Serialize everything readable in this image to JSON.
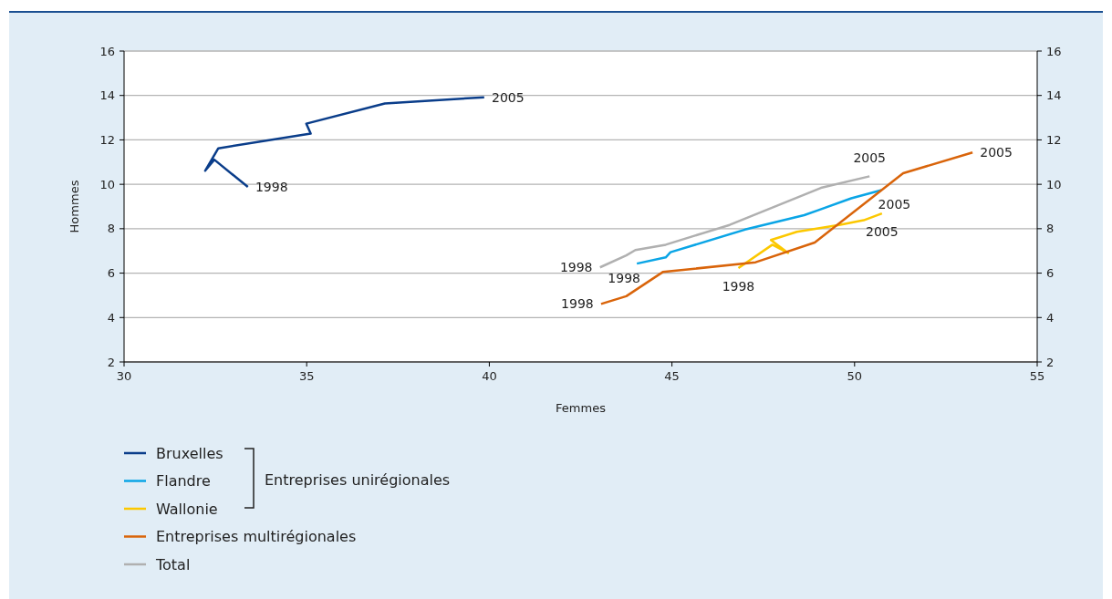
{
  "chart_data": {
    "type": "line",
    "xlabel": "Femmes",
    "ylabel": "Hommes",
    "xlim": [
      30,
      55
    ],
    "xticks": [
      30,
      35,
      40,
      45,
      50,
      55
    ],
    "ylim": [
      2,
      16
    ],
    "yticks": [
      2,
      4,
      6,
      8,
      10,
      12,
      14,
      16
    ],
    "y2lim": [
      2,
      16
    ],
    "y2ticks": [
      2,
      4,
      6,
      8,
      10,
      12,
      14,
      16
    ],
    "grid": "y",
    "legend": "bottom",
    "marker": "none",
    "line_style": "solid",
    "series": [
      {
        "name": "Bruxelles",
        "color": "#0a3d8a",
        "x": [
          33.39,
          32.47,
          32.22,
          32.58,
          35.11,
          34.99,
          37.14,
          39.86
        ],
        "values": [
          9.88,
          11.11,
          10.61,
          11.62,
          12.28,
          12.73,
          13.64,
          13.92
        ]
      },
      {
        "name": "Flandre",
        "color": "#0aa5e6",
        "x": [
          44.04,
          44.83,
          44.96,
          47.0,
          48.62,
          49.0,
          49.91,
          50.74
        ],
        "values": [
          6.43,
          6.71,
          6.94,
          7.96,
          8.61,
          8.83,
          9.37,
          9.74
        ]
      },
      {
        "name": "Wallonie",
        "color": "#fcc800",
        "x": [
          46.82,
          47.75,
          48.18,
          47.71,
          48.42,
          49.58,
          50.25,
          50.75
        ],
        "values": [
          6.23,
          7.28,
          6.91,
          7.49,
          7.86,
          8.17,
          8.38,
          8.69
        ]
      },
      {
        "name": "Entreprises multirégionales",
        "color": "#d9640a",
        "x": [
          43.06,
          43.75,
          44.75,
          47.29,
          48.91,
          51.33,
          53.23
        ],
        "values": [
          4.61,
          4.96,
          6.05,
          6.49,
          7.38,
          10.5,
          11.43
        ]
      },
      {
        "name": "Total",
        "color": "#b0b0b0",
        "x": [
          43.03,
          43.75,
          44.0,
          44.83,
          46.58,
          49.08,
          50.41
        ],
        "values": [
          6.26,
          6.8,
          7.04,
          7.28,
          8.17,
          9.84,
          10.36
        ]
      }
    ],
    "annotations": [
      {
        "text": "1998",
        "x": 33.39,
        "y": 9.88
      },
      {
        "text": "2005",
        "x": 39.86,
        "y": 13.92
      },
      {
        "text": "1998",
        "x": 43.03,
        "y": 6.26
      },
      {
        "text": "2005",
        "x": 50.41,
        "y": 10.36
      },
      {
        "text": "1998",
        "x": 44.04,
        "y": 6.43
      },
      {
        "text": "2005",
        "x": 50.74,
        "y": 9.74
      },
      {
        "text": "1998",
        "x": 46.82,
        "y": 6.23
      },
      {
        "text": "2005",
        "x": 50.75,
        "y": 8.69
      },
      {
        "text": "1998",
        "x": 43.06,
        "y": 4.61
      },
      {
        "text": "2005",
        "x": 53.23,
        "y": 11.43
      },
      "Entreprises unirégionales"
    ]
  }
}
